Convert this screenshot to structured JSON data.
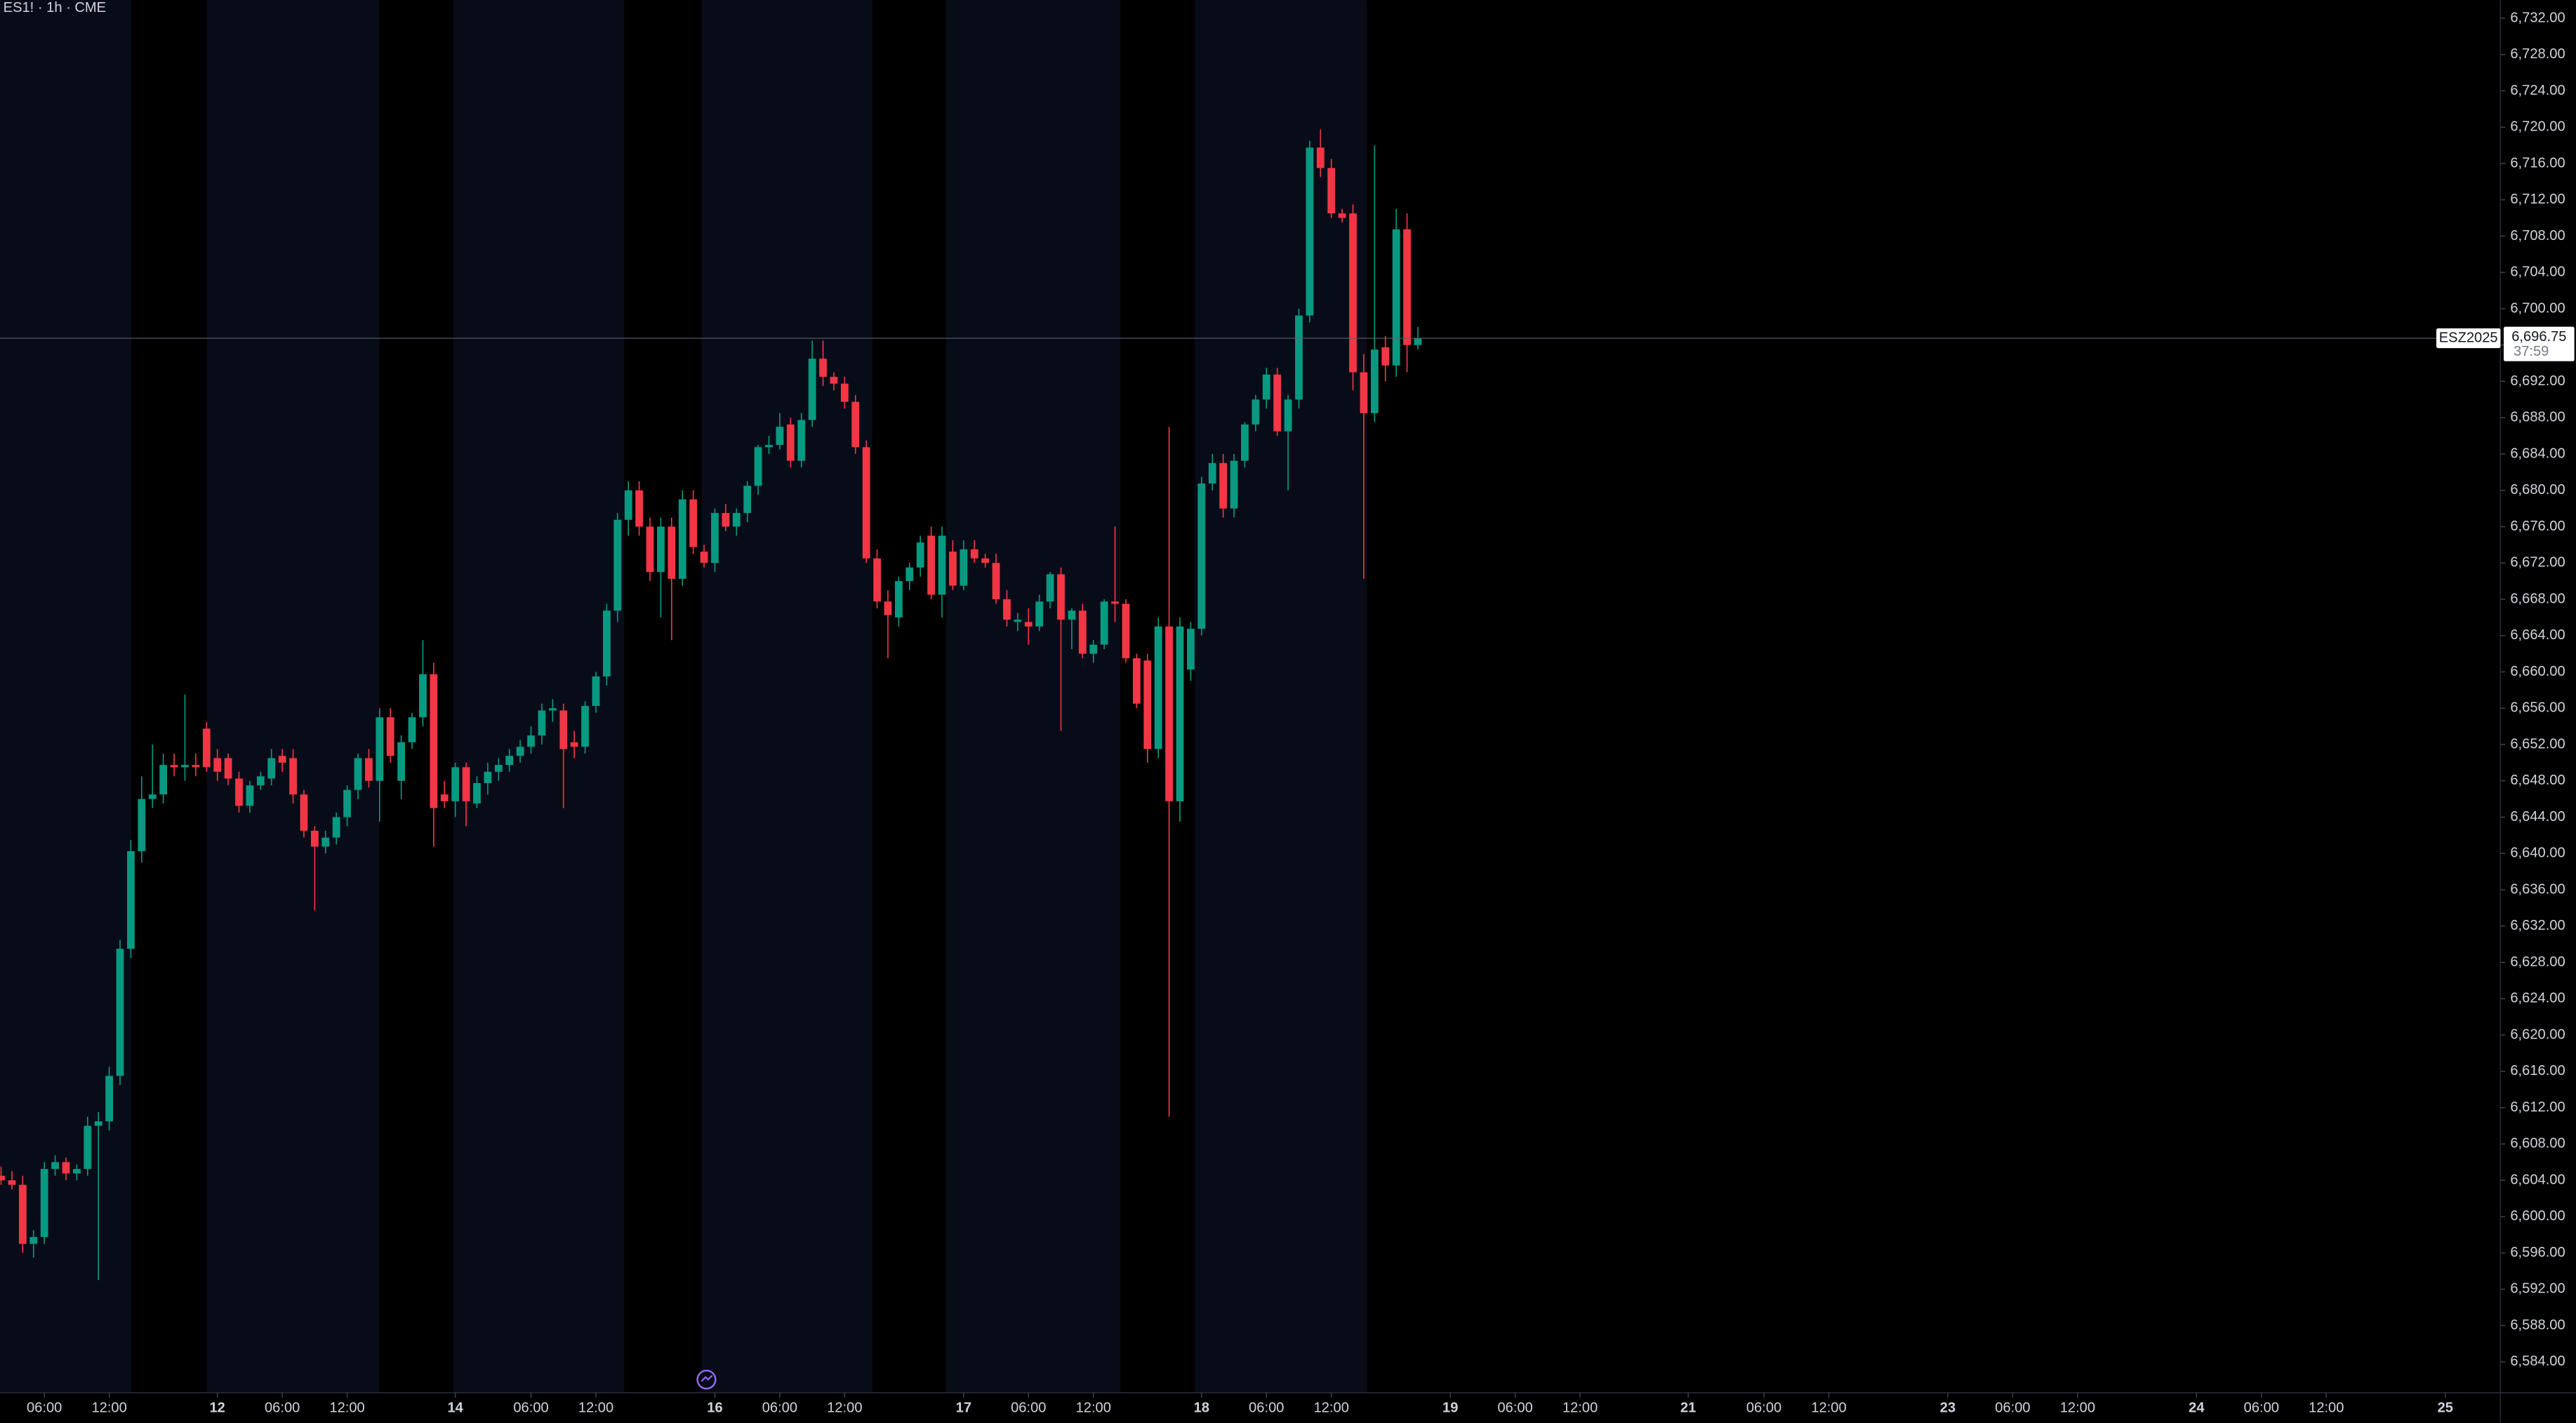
{
  "chart_data": {
    "type": "candlestick",
    "title": "ES1! · 1h · CME",
    "up_color": "#089981",
    "down_color": "#f23645",
    "x": [
      0,
      1,
      2,
      3,
      4,
      5,
      6,
      7,
      8,
      9,
      10,
      11,
      12,
      13,
      14,
      15,
      16,
      17,
      18,
      19,
      20,
      21,
      22,
      23,
      24,
      25,
      26,
      27,
      28,
      29,
      30,
      31,
      32,
      33,
      34,
      35,
      36,
      37,
      38,
      39,
      40,
      41,
      42,
      43,
      44,
      45,
      46,
      47,
      48,
      49,
      50,
      51,
      52,
      53,
      54,
      55,
      56,
      57,
      58,
      59,
      60,
      61,
      62,
      63,
      64,
      65,
      66,
      67,
      68,
      69,
      70,
      71,
      72,
      73,
      74,
      75,
      76,
      77,
      78,
      79,
      80,
      81,
      82,
      83,
      84,
      85,
      86,
      87,
      88,
      89,
      90,
      91,
      92,
      93,
      94,
      95,
      96,
      97,
      98,
      99,
      100,
      101,
      102,
      103,
      104,
      105,
      106,
      107,
      108,
      109,
      110,
      111,
      112,
      113,
      114,
      115,
      116,
      117,
      118,
      119,
      120,
      121,
      122,
      123,
      124,
      125,
      126,
      127,
      128,
      129,
      130,
      131
    ],
    "open": [
      6604.5,
      6604.0,
      6603.5,
      6597.0,
      6597.75,
      6605.25,
      6606.0,
      6604.75,
      6605.25,
      6610.0,
      6610.5,
      6615.5,
      6629.5,
      6640.25,
      6646.0,
      6646.5,
      6649.75,
      6649.5,
      6649.75,
      6653.75,
      6650.5,
      6650.5,
      6648.25,
      6645.25,
      6647.5,
      6648.25,
      6650.75,
      6650.5,
      6646.5,
      6642.5,
      6640.75,
      6641.75,
      6644.0,
      6647.0,
      6650.5,
      6648.0,
      6655.0,
      6648.0,
      6652.25,
      6655.0,
      6659.75,
      6646.5,
      6645.75,
      6649.5,
      6645.5,
      6647.75,
      6649.0,
      6649.75,
      6650.75,
      6651.75,
      6653.0,
      6655.75,
      6655.75,
      6652.25,
      6651.75,
      6656.25,
      6659.5,
      6666.75,
      6676.75,
      6680.0,
      6676.0,
      6671.0,
      6676.0,
      6670.25,
      6679.0,
      6673.25,
      6672.0,
      6677.5,
      6676.0,
      6677.5,
      6680.5,
      6684.75,
      6685.0,
      6687.25,
      6683.25,
      6687.75,
      6694.5,
      6692.5,
      6691.75,
      6689.75,
      6684.75,
      6672.5,
      6667.75,
      6666.0,
      6670.0,
      6671.5,
      6675.0,
      6668.5,
      6673.25,
      6669.5,
      6673.5,
      6672.5,
      6672.0,
      6668.0,
      6665.5,
      6665.5,
      6665.0,
      6667.75,
      6670.75,
      6665.75,
      6666.75,
      6662.0,
      6663.0,
      6667.75,
      6667.5,
      6661.5,
      6661.25,
      6651.5,
      6665.0,
      6645.75,
      6660.25,
      6664.75,
      6680.75,
      6683.0,
      6678.0,
      6683.25,
      6687.25,
      6690.0,
      6692.75,
      6686.5,
      6690.0,
      6699.25,
      6717.75,
      6715.5,
      6710.5,
      6710.5,
      6693.0,
      6688.5,
      6695.75,
      6693.75,
      6708.75,
      6696.0
    ],
    "high": [
      6605.5,
      6605.0,
      6604.5,
      6598.5,
      6606.0,
      6606.75,
      6606.5,
      6605.75,
      6611.0,
      6611.5,
      6616.5,
      6630.5,
      6641.5,
      6648.5,
      6652.0,
      6651.0,
      6651.0,
      6657.5,
      6651.0,
      6654.5,
      6651.5,
      6651.0,
      6649.0,
      6648.0,
      6649.0,
      6651.5,
      6651.5,
      6651.5,
      6647.0,
      6643.0,
      6642.5,
      6644.5,
      6647.5,
      6651.0,
      6651.5,
      6656.0,
      6656.0,
      6653.0,
      6655.5,
      6663.5,
      6661.0,
      6648.0,
      6650.0,
      6650.0,
      6648.5,
      6650.0,
      6650.5,
      6651.5,
      6652.5,
      6654.0,
      6656.5,
      6657.0,
      6656.5,
      6653.5,
      6656.75,
      6660.0,
      6667.5,
      6677.5,
      6681.0,
      6681.0,
      6677.0,
      6677.0,
      6677.0,
      6680.0,
      6680.0,
      6674.0,
      6678.0,
      6678.5,
      6678.0,
      6681.0,
      6685.0,
      6686.0,
      6688.5,
      6688.0,
      6688.5,
      6696.5,
      6696.5,
      6693.0,
      6692.5,
      6690.5,
      6685.5,
      6673.5,
      6669.0,
      6670.5,
      6672.0,
      6675.0,
      6676.0,
      6676.0,
      6674.5,
      6674.5,
      6674.5,
      6673.0,
      6673.0,
      6669.0,
      6666.5,
      6667.0,
      6668.5,
      6671.0,
      6671.5,
      6667.0,
      6667.5,
      6663.5,
      6668.0,
      6676.0,
      6668.0,
      6662.0,
      6662.0,
      6666.0,
      6687.0,
      6666.0,
      6665.5,
      6681.5,
      6684.0,
      6684.0,
      6684.0,
      6687.5,
      6690.5,
      6693.5,
      6693.5,
      6690.5,
      6700.0,
      6718.5,
      6719.75,
      6716.5,
      6711.0,
      6711.5,
      6695.0,
      6718.0,
      6697.0,
      6711.0,
      6710.5,
      6698.0
    ],
    "low": [
      6603.5,
      6603.0,
      6596.0,
      6595.5,
      6597.0,
      6604.5,
      6604.0,
      6604.0,
      6604.5,
      6593.0,
      6609.5,
      6614.5,
      6628.5,
      6639.0,
      6645.0,
      6645.5,
      6648.5,
      6648.0,
      6648.5,
      6649.0,
      6648.0,
      6647.5,
      6644.5,
      6644.5,
      6647.0,
      6647.5,
      6649.0,
      6645.5,
      6641.75,
      6633.75,
      6640.0,
      6641.0,
      6643.0,
      6646.0,
      6647.25,
      6643.5,
      6650.0,
      6646.0,
      6651.5,
      6654.0,
      6640.75,
      6645.0,
      6644.0,
      6643.0,
      6645.0,
      6646.5,
      6648.0,
      6649.0,
      6650.0,
      6651.0,
      6652.0,
      6654.5,
      6645.0,
      6650.5,
      6651.0,
      6655.5,
      6658.5,
      6665.5,
      6675.0,
      6675.0,
      6670.0,
      6666.0,
      6663.5,
      6669.5,
      6673.0,
      6671.5,
      6671.0,
      6675.5,
      6675.0,
      6676.5,
      6679.5,
      6684.0,
      6684.5,
      6682.5,
      6682.5,
      6687.0,
      6691.5,
      6691.0,
      6689.0,
      6684.0,
      6672.0,
      6667.0,
      6661.5,
      6665.0,
      6669.0,
      6670.5,
      6668.0,
      6666.0,
      6669.0,
      6669.0,
      6672.0,
      6671.5,
      6667.5,
      6665.0,
      6664.5,
      6663.0,
      6664.5,
      6667.0,
      6653.5,
      6662.5,
      6661.5,
      6661.0,
      6662.5,
      6665.5,
      6661.0,
      6656.0,
      6650.0,
      6650.5,
      6611.0,
      6643.5,
      6659.0,
      6664.0,
      6680.0,
      6677.0,
      6677.0,
      6682.5,
      6686.5,
      6689.0,
      6686.0,
      6680.0,
      6689.0,
      6698.5,
      6714.5,
      6710.0,
      6709.5,
      6691.0,
      6670.25,
      6687.5,
      6692.0,
      6692.5,
      6693.0,
      6695.5
    ],
    "close": [
      6604.0,
      6603.5,
      6597.0,
      6597.75,
      6605.25,
      6606.0,
      6604.75,
      6605.25,
      6610.0,
      6610.5,
      6615.5,
      6629.5,
      6640.25,
      6646.0,
      6646.5,
      6649.75,
      6649.5,
      6649.75,
      6649.5,
      6649.5,
      6649.0,
      6648.25,
      6645.25,
      6647.5,
      6648.5,
      6650.5,
      6650.0,
      6646.5,
      6642.5,
      6640.75,
      6641.75,
      6644.0,
      6647.0,
      6650.5,
      6648.0,
      6655.0,
      6650.75,
      6652.25,
      6655.0,
      6659.75,
      6645.0,
      6645.75,
      6649.5,
      6645.75,
      6647.75,
      6649.0,
      6649.75,
      6650.75,
      6651.75,
      6653.0,
      6655.75,
      6656.0,
      6651.5,
      6651.75,
      6656.25,
      6659.5,
      6666.75,
      6676.75,
      6680.0,
      6676.0,
      6671.0,
      6676.0,
      6670.25,
      6679.0,
      6673.75,
      6672.0,
      6677.5,
      6676.0,
      6677.5,
      6680.5,
      6684.75,
      6685.0,
      6687.0,
      6683.25,
      6687.75,
      6694.5,
      6692.5,
      6691.75,
      6689.75,
      6684.75,
      6672.5,
      6667.75,
      6666.25,
      6670.0,
      6671.5,
      6674.25,
      6668.5,
      6675.0,
      6669.5,
      6673.5,
      6672.5,
      6672.0,
      6668.0,
      6665.75,
      6665.75,
      6665.0,
      6667.75,
      6670.75,
      6665.75,
      6666.75,
      6662.0,
      6663.0,
      6667.75,
      6667.5,
      6661.5,
      6656.5,
      6651.5,
      6665.0,
      6645.75,
      6665.0,
      6664.75,
      6680.75,
      6683.0,
      6678.0,
      6683.25,
      6687.25,
      6690.0,
      6692.75,
      6686.5,
      6690.0,
      6699.25,
      6717.75,
      6715.5,
      6710.5,
      6710.0,
      6693.0,
      6688.5,
      6695.5,
      6693.75,
      6708.75,
      6696.0,
      6696.75
    ],
    "xlim": [
      -0.1,
      231.1
    ],
    "xticks": [
      {
        "value": 4,
        "label": "06:00"
      },
      {
        "value": 10,
        "label": "12:00"
      },
      {
        "value": 20,
        "label": "12"
      },
      {
        "value": 26,
        "label": "06:00"
      },
      {
        "value": 32,
        "label": "12:00"
      },
      {
        "value": 42,
        "label": "14"
      },
      {
        "value": 49,
        "label": "06:00"
      },
      {
        "value": 55,
        "label": "12:00"
      },
      {
        "value": 66,
        "label": "16"
      },
      {
        "value": 72,
        "label": "06:00"
      },
      {
        "value": 78,
        "label": "12:00"
      },
      {
        "value": 89,
        "label": "17"
      },
      {
        "value": 95,
        "label": "06:00"
      },
      {
        "value": 101,
        "label": "12:00"
      },
      {
        "value": 111,
        "label": "18"
      },
      {
        "value": 117,
        "label": "06:00"
      },
      {
        "value": 123,
        "label": "12:00"
      },
      {
        "value": 134,
        "label": "19"
      },
      {
        "value": 140,
        "label": "06:00"
      },
      {
        "value": 146,
        "label": "12:00"
      },
      {
        "value": 156,
        "label": "21"
      },
      {
        "value": 163,
        "label": "06:00"
      },
      {
        "value": 169,
        "label": "12:00"
      },
      {
        "value": 180,
        "label": "23"
      },
      {
        "value": 186,
        "label": "06:00"
      },
      {
        "value": 192,
        "label": "12:00"
      },
      {
        "value": 203,
        "label": "24"
      },
      {
        "value": 209,
        "label": "06:00"
      },
      {
        "value": 215,
        "label": "12:00"
      },
      {
        "value": 226,
        "label": "25"
      }
    ],
    "ylim": [
      6580.6,
      6734.0
    ],
    "yticks": [
      {
        "value": 6584,
        "label": "6,584.00"
      },
      {
        "value": 6588,
        "label": "6,588.00"
      },
      {
        "value": 6592,
        "label": "6,592.00"
      },
      {
        "value": 6596,
        "label": "6,596.00"
      },
      {
        "value": 6600,
        "label": "6,600.00"
      },
      {
        "value": 6604,
        "label": "6,604.00"
      },
      {
        "value": 6608,
        "label": "6,608.00"
      },
      {
        "value": 6612,
        "label": "6,612.00"
      },
      {
        "value": 6616,
        "label": "6,616.00"
      },
      {
        "value": 6620,
        "label": "6,620.00"
      },
      {
        "value": 6624,
        "label": "6,624.00"
      },
      {
        "value": 6628,
        "label": "6,628.00"
      },
      {
        "value": 6632,
        "label": "6,632.00"
      },
      {
        "value": 6636,
        "label": "6,636.00"
      },
      {
        "value": 6640,
        "label": "6,640.00"
      },
      {
        "value": 6644,
        "label": "6,644.00"
      },
      {
        "value": 6648,
        "label": "6,648.00"
      },
      {
        "value": 6652,
        "label": "6,652.00"
      },
      {
        "value": 6656,
        "label": "6,656.00"
      },
      {
        "value": 6660,
        "label": "6,660.00"
      },
      {
        "value": 6664,
        "label": "6,664.00"
      },
      {
        "value": 6668,
        "label": "6,668.00"
      },
      {
        "value": 6672,
        "label": "6,672.00"
      },
      {
        "value": 6676,
        "label": "6,676.00"
      },
      {
        "value": 6680,
        "label": "6,680.00"
      },
      {
        "value": 6684,
        "label": "6,684.00"
      },
      {
        "value": 6688,
        "label": "6,688.00"
      },
      {
        "value": 6692,
        "label": "6,692.00"
      },
      {
        "value": 6696,
        "label": "6,696.00"
      },
      {
        "value": 6700,
        "label": "6,700.00"
      },
      {
        "value": 6704,
        "label": "6,704.00"
      },
      {
        "value": 6708,
        "label": "6,708.00"
      },
      {
        "value": 6712,
        "label": "6,712.00"
      },
      {
        "value": 6716,
        "label": "6,716.00"
      },
      {
        "value": 6720,
        "label": "6,720.00"
      },
      {
        "value": 6724,
        "label": "6,724.00"
      },
      {
        "value": 6728,
        "label": "6,728.00"
      },
      {
        "value": 6732,
        "label": "6,732.00"
      }
    ],
    "grid": false,
    "price_line": {
      "symbol": "ESZ2025",
      "value": 6696.75,
      "label": "6,696.75",
      "countdown": "37:59"
    }
  }
}
